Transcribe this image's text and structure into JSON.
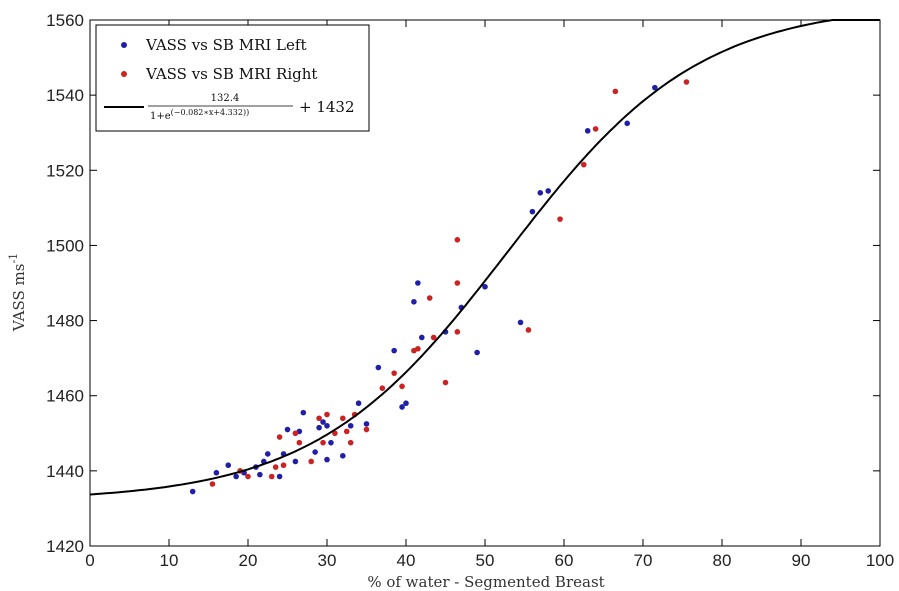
{
  "chart_data": {
    "type": "scatter",
    "title": "",
    "xlabel": "% of water - Segmented Breast",
    "ylabel": "VASS ms",
    "ylabel_superscript": "-1",
    "xlim": [
      0,
      100
    ],
    "ylim": [
      1420,
      1560
    ],
    "xticks": [
      0,
      10,
      20,
      30,
      40,
      50,
      60,
      70,
      80,
      90,
      100
    ],
    "yticks": [
      1420,
      1440,
      1460,
      1480,
      1500,
      1520,
      1540,
      1560
    ],
    "grid": false,
    "legend_position": "top-left",
    "series": [
      {
        "name": "VASS vs SB MRI Left",
        "color": "#1f1fa8",
        "marker": "dot",
        "points": [
          [
            13,
            1434.5
          ],
          [
            16,
            1439.5
          ],
          [
            17.5,
            1441.5
          ],
          [
            18.5,
            1438.5
          ],
          [
            19.5,
            1439.5
          ],
          [
            21,
            1441
          ],
          [
            21.5,
            1439
          ],
          [
            22,
            1442.5
          ],
          [
            22.5,
            1444.5
          ],
          [
            24,
            1438.5
          ],
          [
            24.5,
            1444.5
          ],
          [
            25,
            1451
          ],
          [
            26,
            1442.5
          ],
          [
            26.5,
            1450.5
          ],
          [
            27,
            1455.5
          ],
          [
            28.5,
            1445
          ],
          [
            29,
            1451.5
          ],
          [
            29.5,
            1453
          ],
          [
            30,
            1443
          ],
          [
            30,
            1452
          ],
          [
            30.5,
            1447.5
          ],
          [
            32,
            1444
          ],
          [
            33,
            1452
          ],
          [
            34,
            1458
          ],
          [
            35,
            1452.5
          ],
          [
            36.5,
            1467.5
          ],
          [
            38.5,
            1472
          ],
          [
            39.5,
            1457
          ],
          [
            40,
            1458
          ],
          [
            41,
            1485
          ],
          [
            41.5,
            1490
          ],
          [
            42,
            1475.5
          ],
          [
            45,
            1477
          ],
          [
            47,
            1483.5
          ],
          [
            49,
            1471.5
          ],
          [
            50,
            1489
          ],
          [
            54.5,
            1479.5
          ],
          [
            56,
            1509
          ],
          [
            57,
            1514
          ],
          [
            58,
            1514.5
          ],
          [
            63,
            1530.5
          ],
          [
            68,
            1532.5
          ],
          [
            71.5,
            1542
          ]
        ]
      },
      {
        "name": "VASS vs SB MRI Right",
        "color": "#cc2222",
        "marker": "dot",
        "points": [
          [
            15.5,
            1436.5
          ],
          [
            19,
            1440
          ],
          [
            20,
            1438.5
          ],
          [
            23,
            1438.5
          ],
          [
            23.5,
            1441
          ],
          [
            24,
            1449
          ],
          [
            24.5,
            1441.5
          ],
          [
            26,
            1450
          ],
          [
            26.5,
            1447.5
          ],
          [
            28,
            1442.5
          ],
          [
            29,
            1454
          ],
          [
            29.5,
            1447.5
          ],
          [
            30,
            1455
          ],
          [
            31,
            1450
          ],
          [
            32,
            1454
          ],
          [
            32.5,
            1450.5
          ],
          [
            33,
            1447.5
          ],
          [
            33.5,
            1455
          ],
          [
            35,
            1451
          ],
          [
            37,
            1462
          ],
          [
            38.5,
            1466
          ],
          [
            39.5,
            1462.5
          ],
          [
            41,
            1472
          ],
          [
            41.5,
            1472.5
          ],
          [
            43,
            1486
          ],
          [
            43.5,
            1475.5
          ],
          [
            45,
            1463.5
          ],
          [
            46.5,
            1490
          ],
          [
            46.5,
            1477
          ],
          [
            46.5,
            1501.5
          ],
          [
            55.5,
            1477.5
          ],
          [
            59.5,
            1507
          ],
          [
            62.5,
            1521.5
          ],
          [
            64,
            1531
          ],
          [
            66.5,
            1541
          ],
          [
            75.5,
            1543.5
          ]
        ]
      },
      {
        "name": "132.4 / (1+e^(-0.082*x+4.332)) + 1432",
        "type": "line",
        "color": "#000000",
        "function": {
          "A": 132.4,
          "k": -0.082,
          "b": 4.332,
          "C": 1432
        },
        "x_range": [
          0,
          100
        ]
      }
    ],
    "legend": {
      "entries": [
        {
          "label": "VASS vs SB MRI Left",
          "color": "#1f1fa8",
          "kind": "dot"
        },
        {
          "label": "VASS vs SB MRI Right",
          "color": "#cc2222",
          "kind": "dot"
        },
        {
          "kind": "line",
          "color": "#000000",
          "numerator": "132.4",
          "denominator": "1+e",
          "exponent": "(−0.082∗x+4.332))",
          "suffix": "+ 1432"
        }
      ]
    }
  }
}
